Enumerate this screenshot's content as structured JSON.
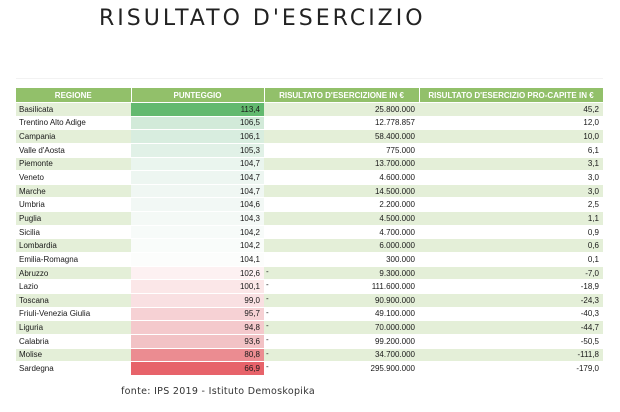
{
  "title": "RISULTATO D'ESERCIZIO",
  "caption": "fonte: IPS 2019 - Istituto Demoskopika",
  "colors": {
    "header": "#92c06a",
    "band": "#e4efd8"
  },
  "columns": [
    "REGIONE",
    "PUNTEGGIO",
    "RISULTATO D'ESERCIZIONE IN €",
    "RISULTATO D'ESERCIZIO PRO-CAPITE IN €"
  ],
  "rows": [
    {
      "region": "Basilicata",
      "score": "113,4",
      "result": "25.800.000",
      "neg": "",
      "percapita": "45,2",
      "color": "#63b96f"
    },
    {
      "region": "Trentino Alto Adige",
      "score": "106,5",
      "result": "12.778.857",
      "neg": "",
      "percapita": "12,0",
      "color": "#d2ead9"
    },
    {
      "region": "Campania",
      "score": "106,1",
      "result": "58.400.000",
      "neg": "",
      "percapita": "10,0",
      "color": "#d8eddf"
    },
    {
      "region": "Valle d'Aosta",
      "score": "105,3",
      "result": "775.000",
      "neg": "",
      "percapita": "6,1",
      "color": "#e1f1e7"
    },
    {
      "region": "Piemonte",
      "score": "104,7",
      "result": "13.700.000",
      "neg": "",
      "percapita": "3,1",
      "color": "#eaf5ee"
    },
    {
      "region": "Veneto",
      "score": "104,7",
      "result": "4.600.000",
      "neg": "",
      "percapita": "3,0",
      "color": "#edf6f1"
    },
    {
      "region": "Marche",
      "score": "104,7",
      "result": "14.500.000",
      "neg": "",
      "percapita": "3,0",
      "color": "#f0f7f3"
    },
    {
      "region": "Umbria",
      "score": "104,6",
      "result": "2.200.000",
      "neg": "",
      "percapita": "2,5",
      "color": "#f2f8f5"
    },
    {
      "region": "Puglia",
      "score": "104,3",
      "result": "4.500.000",
      "neg": "",
      "percapita": "1,1",
      "color": "#f4f9f6"
    },
    {
      "region": "Sicilia",
      "score": "104,2",
      "result": "4.700.000",
      "neg": "",
      "percapita": "0,9",
      "color": "#f7fbf9"
    },
    {
      "region": "Lombardia",
      "score": "104,2",
      "result": "6.000.000",
      "neg": "",
      "percapita": "0,6",
      "color": "#f9fcfa"
    },
    {
      "region": "Emilia-Romagna",
      "score": "104,1",
      "result": "300.000",
      "neg": "",
      "percapita": "0,1",
      "color": "#fcfdfc"
    },
    {
      "region": "Abruzzo",
      "score": "102,6",
      "result": "9.300.000",
      "neg": "-",
      "percapita": "-7,0",
      "color": "#fdf1f2"
    },
    {
      "region": "Lazio",
      "score": "100,1",
      "result": "111.600.000",
      "neg": "-",
      "percapita": "-18,9",
      "color": "#fbe7e8"
    },
    {
      "region": "Toscana",
      "score": "99,0",
      "result": "90.900.000",
      "neg": "-",
      "percapita": "-24,3",
      "color": "#f9e0e2"
    },
    {
      "region": "Friuli-Venezia Giulia",
      "score": "95,7",
      "result": "49.100.000",
      "neg": "-",
      "percapita": "-40,3",
      "color": "#f6d1d4"
    },
    {
      "region": "Liguria",
      "score": "94,8",
      "result": "70.000.000",
      "neg": "-",
      "percapita": "-44,7",
      "color": "#f4c9cc"
    },
    {
      "region": "Calabria",
      "score": "93,6",
      "result": "99.200.000",
      "neg": "-",
      "percapita": "-50,5",
      "color": "#f2c2c5"
    },
    {
      "region": "Molise",
      "score": "80,8",
      "result": "34.700.000",
      "neg": "-",
      "percapita": "-111,8",
      "color": "#eb8c91"
    },
    {
      "region": "Sardegna",
      "score": "66,9",
      "result": "295.900.000",
      "neg": "-",
      "percapita": "-179,0",
      "color": "#e7636a"
    }
  ]
}
